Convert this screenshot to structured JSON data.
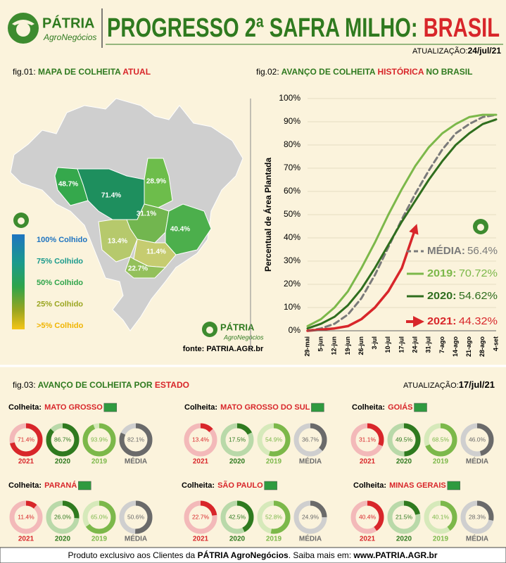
{
  "header": {
    "brand": "PÁTRIA",
    "brand_sub": "AgroNegócios",
    "title_main": "PROGRESSO 2ª SAFRA MILHO:",
    "title_accent": "BRASIL",
    "update_label": "ATUALIZAÇÃO:",
    "update_date": "24/jul/21"
  },
  "fig01": {
    "prefix": "fig.01:",
    "title": "MAPA DE COLHEITA",
    "accent": "ATUAL",
    "regions": [
      {
        "label": "48.7%",
        "value": 48.7,
        "color": "#35a84c"
      },
      {
        "label": "71.4%",
        "value": 71.4,
        "color": "#1e8f5e"
      },
      {
        "label": "28.9%",
        "value": 28.9,
        "color": "#6dbd4b"
      },
      {
        "label": "31.1%",
        "value": 31.1,
        "color": "#72b64f"
      },
      {
        "label": "40.4%",
        "value": 40.4,
        "color": "#4caf4c"
      },
      {
        "label": "13.4%",
        "value": 13.4,
        "color": "#b6c96c"
      },
      {
        "label": "11.4%",
        "value": 11.4,
        "color": "#c6cc70"
      },
      {
        "label": "22.7%",
        "value": 22.7,
        "color": "#93c05b"
      }
    ],
    "legend": [
      {
        "label": "100% Colhido",
        "color": "#1f74c0"
      },
      {
        "label": "75% Colhido",
        "color": "#1a9a8c"
      },
      {
        "label": "50% Colhido",
        "color": "#2ea44a"
      },
      {
        "label": "25% Colhido",
        "color": "#9aa520"
      },
      {
        "label": ">5% Colhido",
        "color": "#f0b400"
      }
    ],
    "source": "fonte: PATRIA.AGR.br"
  },
  "chart_data": {
    "type": "line",
    "prefix": "fig.02:",
    "title": "AVANÇO DE COLHEITA",
    "accent": "HISTÓRICA",
    "title_end": "NO BRASIL",
    "y_label": "Percentual de Área Plantada",
    "categories": [
      "29-mai",
      "5-jun",
      "12-jun",
      "19-jun",
      "26-jun",
      "3-jul",
      "10-jul",
      "17-jul",
      "24-jul",
      "31-jul",
      "7-ago",
      "14-ago",
      "21-ago",
      "28-ago",
      "4-set"
    ],
    "ylim": [
      0,
      100
    ],
    "yticks": [
      {
        "value": 0,
        "label": "0%"
      },
      {
        "value": 10,
        "label": "10%"
      },
      {
        "value": 20,
        "label": "20%"
      },
      {
        "value": 30,
        "label": "30%"
      },
      {
        "value": 40,
        "label": "40%"
      },
      {
        "value": 50,
        "label": "50%"
      },
      {
        "value": 60,
        "label": "60%"
      },
      {
        "value": 70,
        "label": "70%"
      },
      {
        "value": 80,
        "label": "80%"
      },
      {
        "value": 90,
        "label": "90%"
      },
      {
        "value": 100,
        "label": "100%"
      }
    ],
    "grid": true,
    "legend_separator": ":",
    "series": [
      {
        "name": "MÉDIA",
        "color": "#7a7a7a",
        "dash": true,
        "legend_value": 56.4,
        "legend_label": "56.4%",
        "values": [
          0,
          1,
          3,
          7,
          14,
          24,
          36,
          48,
          59,
          69,
          78,
          85,
          89,
          92,
          93
        ]
      },
      {
        "name": "2019",
        "color": "#7cb84a",
        "dash": false,
        "legend_value": 70.72,
        "legend_label": "70.72%",
        "values": [
          2,
          5,
          10,
          17,
          27,
          38,
          50,
          61,
          71,
          79,
          85,
          89,
          92,
          93,
          93
        ]
      },
      {
        "name": "2020",
        "color": "#2f6e1e",
        "dash": false,
        "legend_value": 54.62,
        "legend_label": "54.62%",
        "values": [
          1,
          3,
          6,
          11,
          18,
          27,
          37,
          47,
          56,
          65,
          73,
          80,
          85,
          89,
          91
        ]
      },
      {
        "name": "2021",
        "color": "#d8262a",
        "dash": false,
        "arrow": true,
        "legend_value": 44.32,
        "legend_label": "44.32%",
        "values": [
          0,
          0.5,
          1,
          2,
          5,
          10,
          17,
          27,
          44,
          null,
          null,
          null,
          null,
          null,
          null
        ]
      }
    ]
  },
  "fig03": {
    "prefix": "fig.03:",
    "title": "AVANÇO DE COLHEITA POR",
    "accent": "ESTADO",
    "update_label": "ATUALIZAÇÃO:",
    "update_date": "17/jul/21",
    "state_label": "Colheita:",
    "years": [
      "2021",
      "2020",
      "2019",
      "MÉDIA"
    ],
    "colors": [
      "#d8262a",
      "#2f7a1f",
      "#7cb84a",
      "#6a6a6a"
    ],
    "tracks": [
      "#f3b9b9",
      "#b9d9a9",
      "#d6e9ba",
      "#cfcfcf"
    ],
    "states": [
      {
        "name": "MATO GROSSO",
        "values": [
          71.4,
          86.7,
          93.9,
          82.1
        ],
        "value_labels": [
          "71.4%",
          "86.7%",
          "93.9%",
          "82.1%"
        ]
      },
      {
        "name": "MATO GROSSO DO SUL",
        "values": [
          13.4,
          17.5,
          54.9,
          36.7
        ],
        "value_labels": [
          "13.4%",
          "17.5%",
          "54.9%",
          "36.7%"
        ]
      },
      {
        "name": "GOIÁS",
        "values": [
          31.1,
          49.5,
          68.5,
          46.0
        ],
        "value_labels": [
          "31.1%",
          "49.5%",
          "68.5%",
          "46.0%"
        ]
      },
      {
        "name": "PARANÁ",
        "values": [
          11.4,
          26.0,
          65.0,
          50.6
        ],
        "value_labels": [
          "11.4%",
          "26.0%",
          "65.0%",
          "50.6%"
        ]
      },
      {
        "name": "SÃO PAULO",
        "values": [
          22.7,
          42.5,
          52.8,
          24.9
        ],
        "value_labels": [
          "22.7%",
          "42.5%",
          "52.8%",
          "24.9%"
        ]
      },
      {
        "name": "MINAS GERAIS",
        "values": [
          40.4,
          21.5,
          40.1,
          28.3
        ],
        "value_labels": [
          "40.4%",
          "21.5%",
          "40.1%",
          "28.3%"
        ]
      }
    ]
  },
  "footer": {
    "t1": "Produto exclusivo aos Clientes da",
    "t2": "PÁTRIA AgroNegócios",
    "t3": ". Saiba mais em:",
    "t4": "www.PATRIA.AGR.br"
  }
}
